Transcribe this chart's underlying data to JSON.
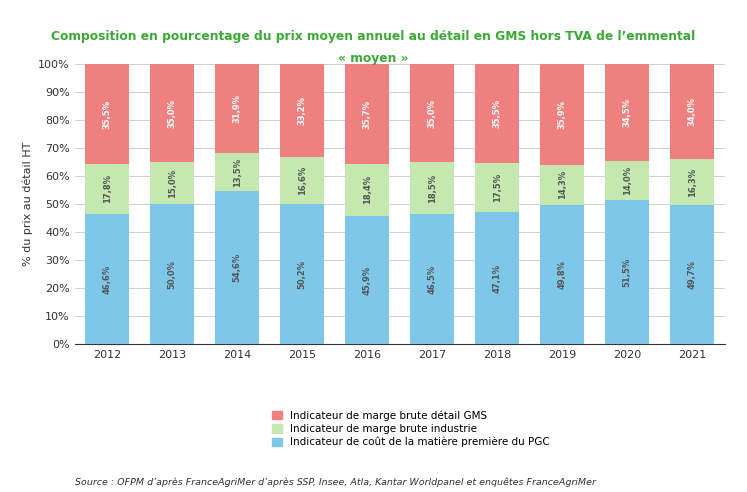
{
  "years": [
    "2012",
    "2013",
    "2014",
    "2015",
    "2016",
    "2017",
    "2018",
    "2019",
    "2020",
    "2021"
  ],
  "blue_values": [
    46.6,
    50.0,
    54.6,
    50.2,
    45.9,
    46.5,
    47.1,
    49.8,
    51.5,
    49.7
  ],
  "green_values": [
    17.8,
    15.0,
    13.5,
    16.6,
    18.4,
    18.5,
    17.5,
    14.3,
    14.0,
    16.3
  ],
  "red_values": [
    35.5,
    35.0,
    31.9,
    33.2,
    35.7,
    35.0,
    35.5,
    35.9,
    34.5,
    34.0
  ],
  "blue_labels": [
    "46,6%",
    "50,0%",
    "54,6%",
    "50,2%",
    "45,9%",
    "46,5%",
    "47,1%",
    "49,8%",
    "51,5%",
    "49,7%"
  ],
  "green_labels": [
    "17,8%",
    "15,0%",
    "13,5%",
    "16,6%",
    "18,4%",
    "18,5%",
    "17,5%",
    "14,3%",
    "14,0%",
    "16,3%"
  ],
  "red_labels": [
    "35,5%",
    "35,0%",
    "31,9%",
    "33,2%",
    "35,7%",
    "35,0%",
    "35,5%",
    "35,9%",
    "34,5%",
    "34,0%"
  ],
  "blue_color": "#7fc7e8",
  "green_color": "#c5e8b0",
  "red_color": "#f08080",
  "title_line1": "Composition en pourcentage du prix moyen annuel au détail en GMS hors TVA de l’emmental",
  "title_line2": "« moyen »",
  "title_color": "#3aaa35",
  "ylabel": "% du prix au détail HT",
  "legend_labels": [
    "Indicateur de marge brute détail GMS",
    "Indicateur de marge brute industrie",
    "Indicateur de coût de la matière première du PGC"
  ],
  "source_text": "Source : OFPM d’après FranceAgriMer d’après SSP, Insee, Atla, Kantar Worldpanel et enquêtes FranceAgriMer",
  "ylim": [
    0,
    100
  ],
  "yticks": [
    0,
    10,
    20,
    30,
    40,
    50,
    60,
    70,
    80,
    90,
    100
  ],
  "ytick_labels": [
    "0%",
    "10%",
    "20%",
    "30%",
    "40%",
    "50%",
    "60%",
    "70%",
    "80%",
    "90%",
    "100%"
  ],
  "background_color": "#ffffff",
  "grid_color": "#d0d0d0"
}
